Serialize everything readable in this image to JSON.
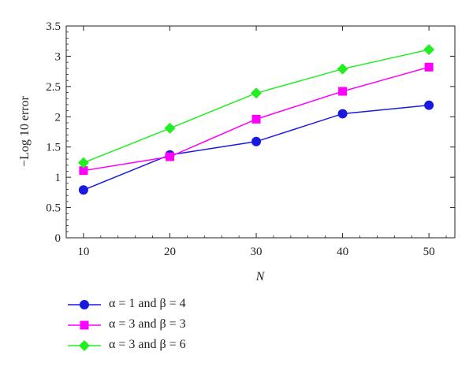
{
  "chart_data": {
    "type": "line",
    "xlabel": "N",
    "ylabel": "−Log 10 error",
    "x": [
      10,
      20,
      30,
      40,
      50
    ],
    "xticks": [
      "10",
      "20",
      "30",
      "40",
      "50"
    ],
    "xlim": [
      8,
      53
    ],
    "ylim": [
      0,
      3.5
    ],
    "yticks": [
      "0",
      "0.5",
      "1",
      "1.5",
      "2",
      "2.5",
      "3",
      "3.5"
    ],
    "grid": false,
    "legend_position": "bottom-left, below plot",
    "series": [
      {
        "name": "α = 1 and β = 4",
        "color": "#1a1adf",
        "marker": "circle",
        "values": [
          0.79,
          1.37,
          1.59,
          2.05,
          2.19
        ]
      },
      {
        "name": "α = 3 and β = 3",
        "color": "#ff00ff",
        "marker": "square",
        "values": [
          1.11,
          1.34,
          1.96,
          2.42,
          2.82
        ]
      },
      {
        "name": "α = 3 and β = 6",
        "color": "#22ee22",
        "marker": "diamond",
        "values": [
          1.24,
          1.81,
          2.39,
          2.79,
          3.11
        ]
      }
    ]
  }
}
